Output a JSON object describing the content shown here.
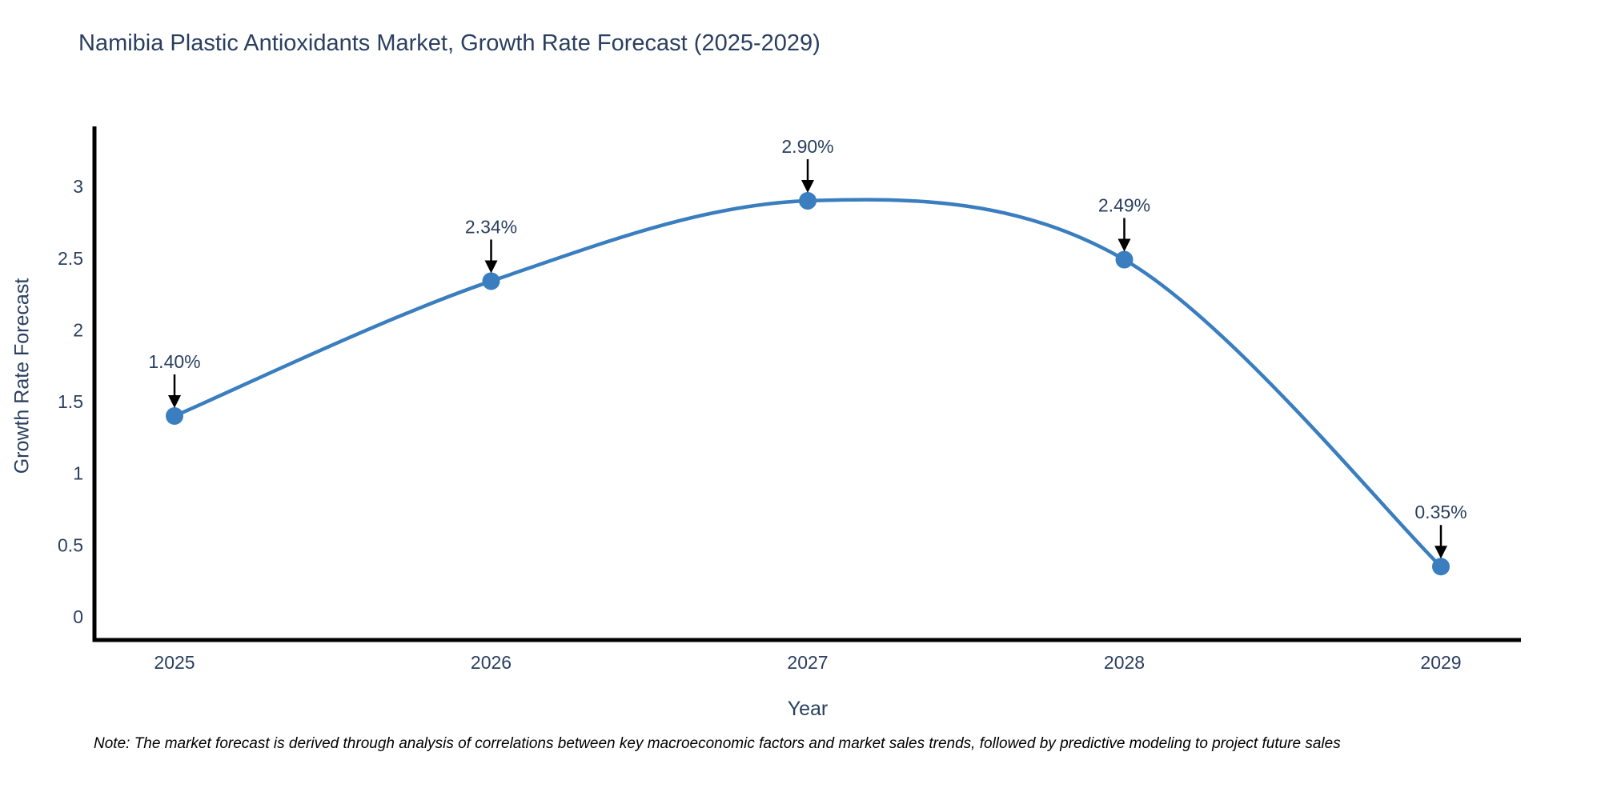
{
  "chart_data": {
    "type": "line",
    "title": "Namibia Plastic Antioxidants Market, Growth Rate Forecast (2025-2029)",
    "xlabel": "Year",
    "ylabel": "Growth Rate Forecast",
    "x": [
      2025,
      2026,
      2027,
      2028,
      2029
    ],
    "x_tick_labels": [
      "2025",
      "2026",
      "2027",
      "2028",
      "2029"
    ],
    "values": [
      1.4,
      2.34,
      2.9,
      2.49,
      0.35
    ],
    "point_labels": [
      "1.40%",
      "2.34%",
      "2.90%",
      "2.49%",
      "0.35%"
    ],
    "y_ticks": [
      0,
      0.5,
      1,
      1.5,
      2,
      2.5,
      3
    ],
    "y_tick_labels": [
      "0",
      "0.5",
      "1",
      "1.5",
      "2",
      "2.5",
      "3"
    ],
    "ylim": [
      -0.16,
      3.43
    ],
    "grid": false,
    "legend_position": "none",
    "line_shape": "spline",
    "line_color": "#3a7ebf",
    "marker_color": "#3a7ebf",
    "axis_color": "#000000",
    "text_color": "#2a3f5f",
    "annotation_color": "#000000"
  },
  "note": {
    "text": "Note: The market forecast is derived through analysis of correlations between key macroeconomic factors and market sales trends, followed by predictive modeling to project future sales"
  }
}
